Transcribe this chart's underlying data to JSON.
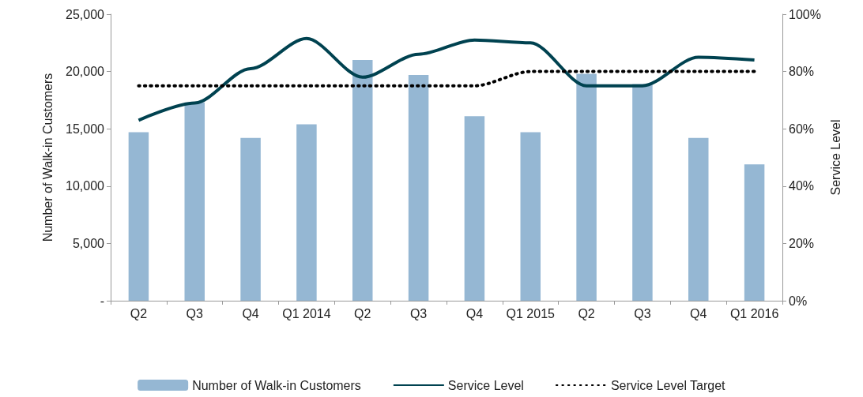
{
  "chart_data": {
    "type": "bar",
    "categories": [
      "Q2",
      "Q3",
      "Q4",
      "Q1 2014",
      "Q2",
      "Q3",
      "Q4",
      "Q1 2015",
      "Q2",
      "Q3",
      "Q4",
      "Q1 2016"
    ],
    "ylabel": "Number of Walk-in Customers",
    "y2label": "Service Level",
    "ylim": [
      0,
      25000
    ],
    "yticks": [
      {
        "value": 0,
        "label": "-"
      },
      {
        "value": 5000,
        "label": "5,000"
      },
      {
        "value": 10000,
        "label": "10,000"
      },
      {
        "value": 15000,
        "label": "15,000"
      },
      {
        "value": 20000,
        "label": "20,000"
      },
      {
        "value": 25000,
        "label": "25,000"
      }
    ],
    "y2lim": [
      0,
      100
    ],
    "y2ticks": [
      {
        "value": 0,
        "label": "0%"
      },
      {
        "value": 20,
        "label": "20%"
      },
      {
        "value": 40,
        "label": "40%"
      },
      {
        "value": 60,
        "label": "60%"
      },
      {
        "value": 80,
        "label": "80%"
      },
      {
        "value": 100,
        "label": "100%"
      }
    ],
    "series": [
      {
        "name": "Number of Walk-in Customers",
        "color": "#95b7d3",
        "values": [
          14700,
          17300,
          14200,
          15400,
          21000,
          19700,
          16100,
          14700,
          19800,
          18900,
          14200,
          11900
        ]
      },
      {
        "name": "Service Level",
        "type": "line",
        "axis": "y2",
        "color": "#004250",
        "line_style": "solid",
        "values": [
          63,
          69,
          81,
          91.5,
          78,
          86,
          91,
          90,
          75,
          75,
          85,
          84
        ]
      },
      {
        "name": "Service Level Target",
        "type": "line",
        "axis": "y2",
        "color": "#000000",
        "line_style": "dotted",
        "values": [
          75,
          75,
          75,
          75,
          75,
          75,
          75,
          80,
          80,
          80,
          80,
          80
        ]
      }
    ],
    "grid": false,
    "legend": "bottom",
    "marker": "none"
  }
}
